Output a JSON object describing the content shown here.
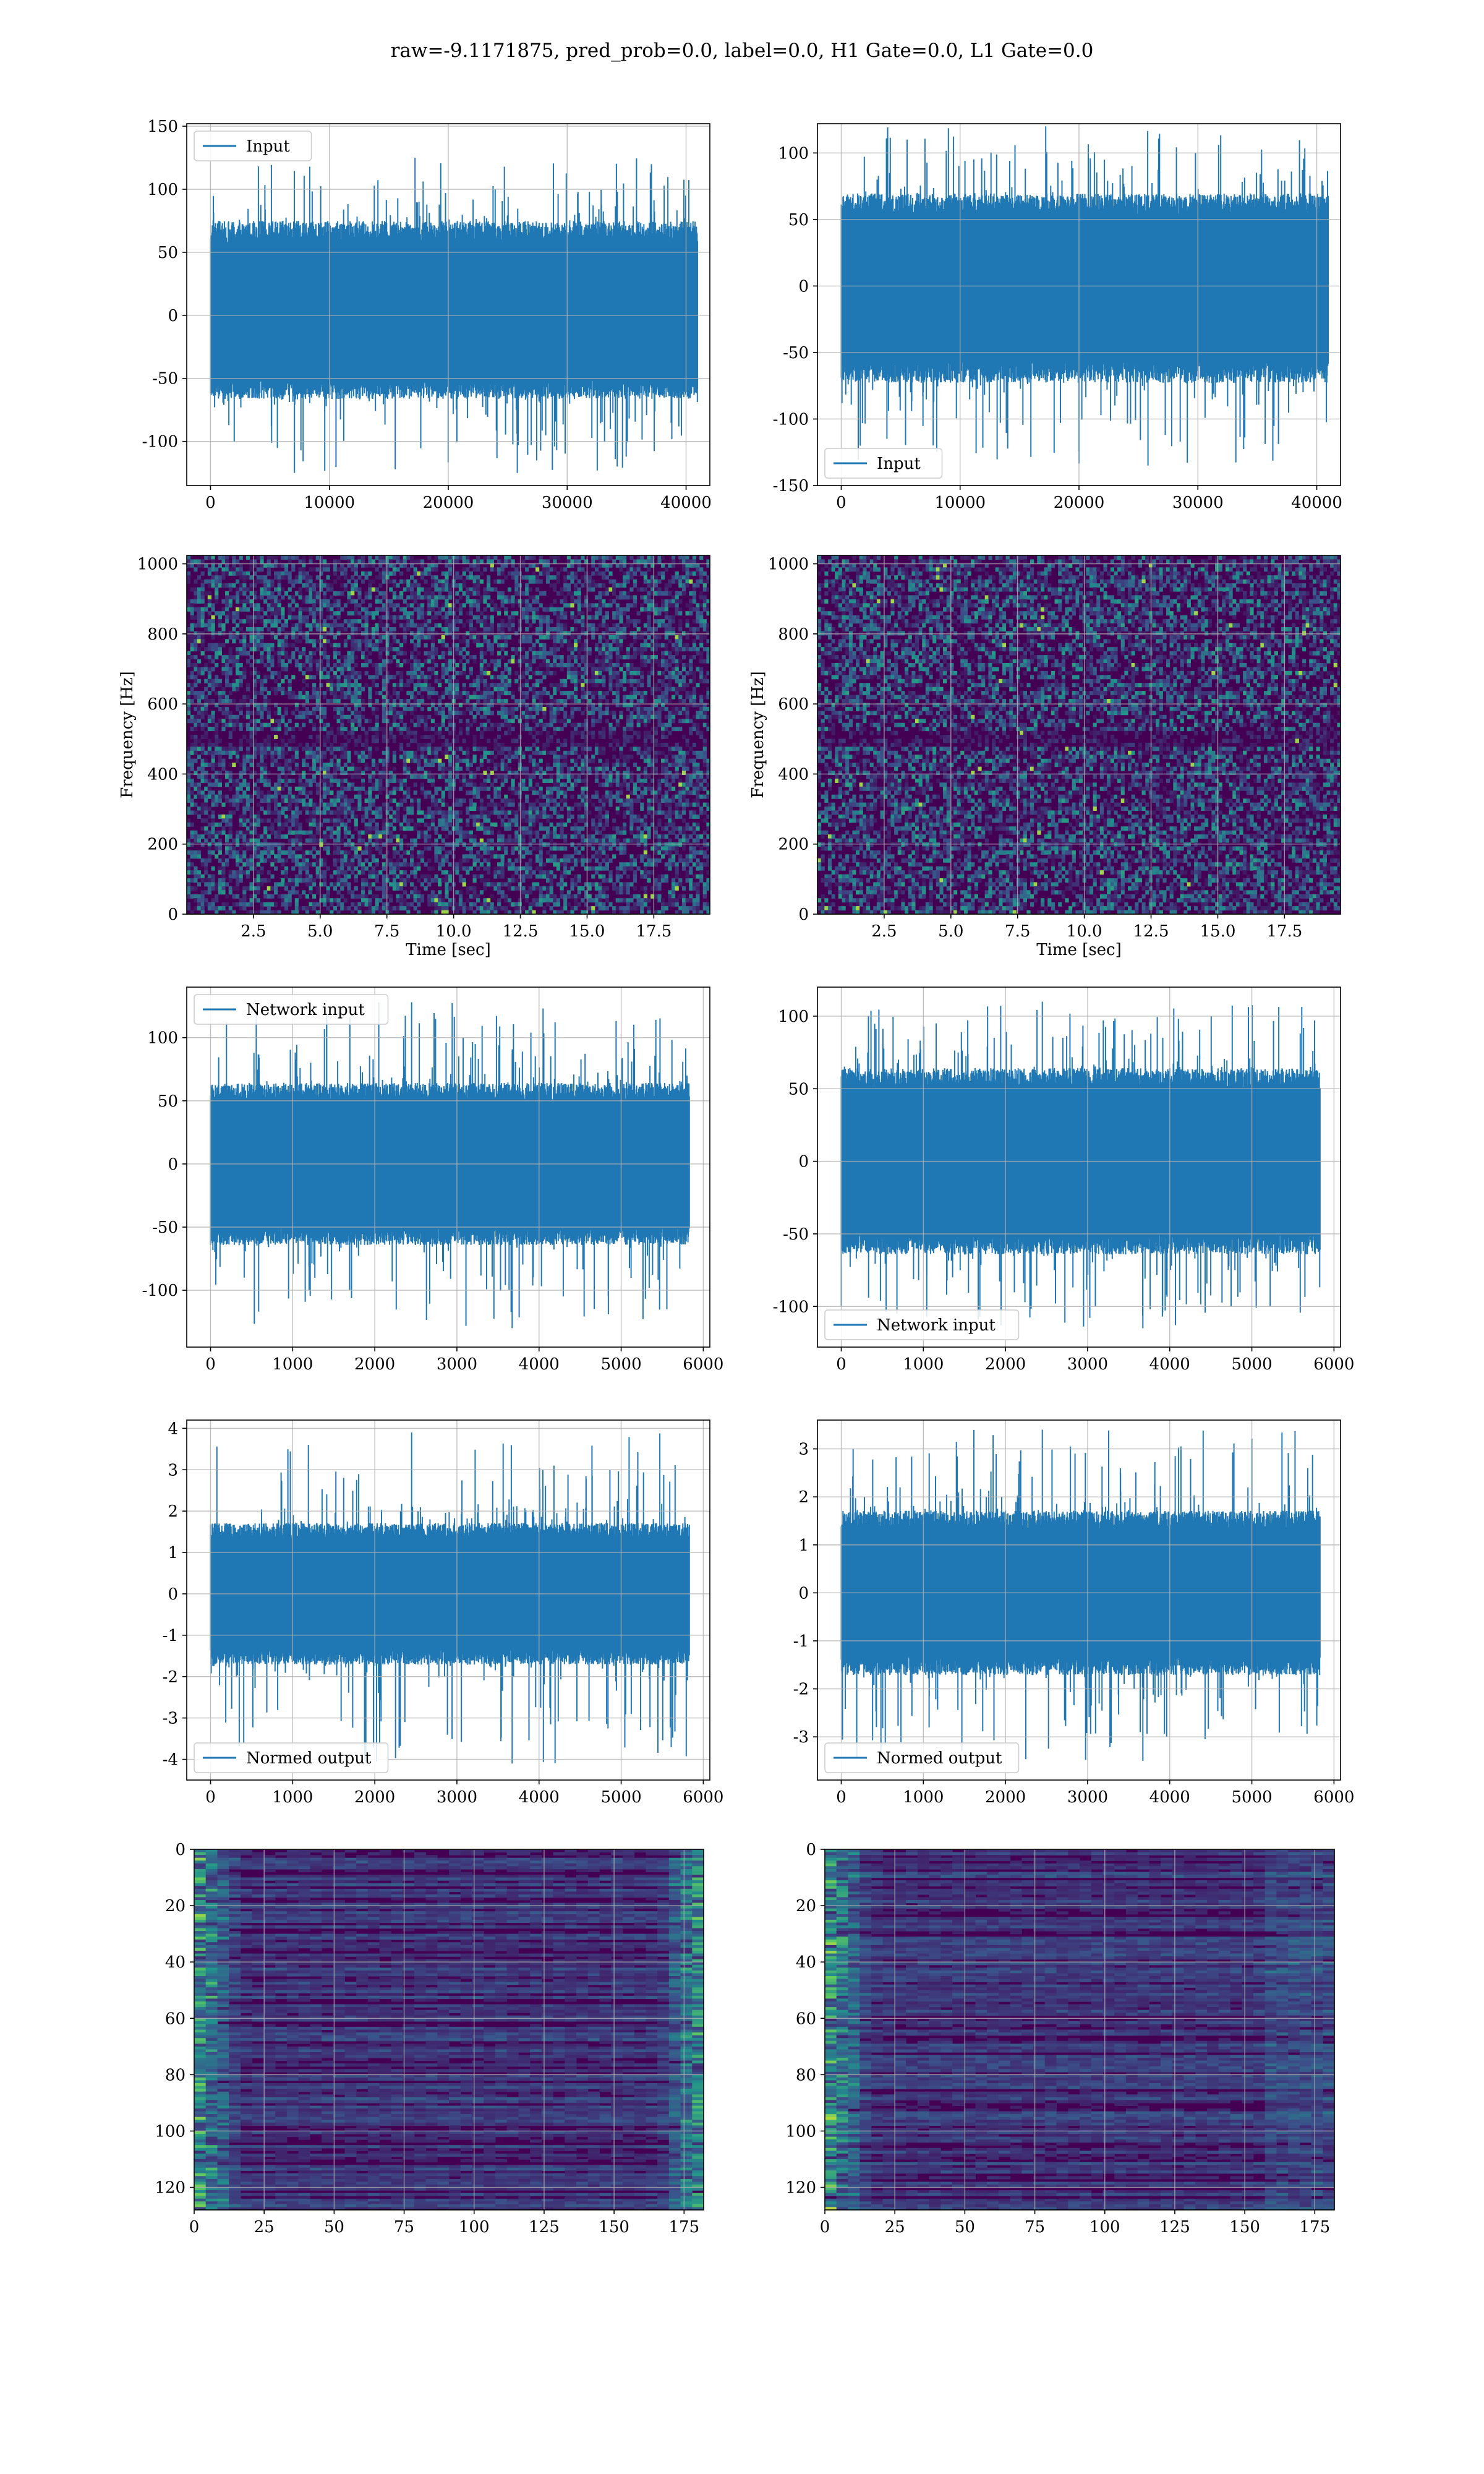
{
  "figure": {
    "title": "raw=-9.1171875, pred_prob=0.0, label=0.0, H1 Gate=0.0, L1 Gate=0.0"
  },
  "colors": {
    "series": "#1f77b4",
    "grid": "#b0b0b0",
    "viridis_low": "#440154",
    "viridis_high": "#fde725"
  },
  "chart_data": [
    {
      "id": "input-h1",
      "type": "line",
      "legend": {
        "label": "Input",
        "loc": "upper-left"
      },
      "xlim": [
        -2000,
        42000
      ],
      "ylim": [
        -135,
        152
      ],
      "xticks": [
        0,
        10000,
        20000,
        30000,
        40000
      ],
      "yticks": [
        -100,
        -50,
        0,
        50,
        100,
        150
      ],
      "xlabel": "",
      "ylabel": "",
      "x_range": [
        0,
        40960
      ],
      "n_samples": 40960,
      "envelope": {
        "core": [
          -62,
          70
        ],
        "peak_max": 125,
        "peak_min": -125
      },
      "grid": true
    },
    {
      "id": "input-l1",
      "type": "line",
      "legend": {
        "label": "Input",
        "loc": "lower-left"
      },
      "xlim": [
        -2000,
        42000
      ],
      "ylim": [
        -150,
        122
      ],
      "xticks": [
        0,
        10000,
        20000,
        30000,
        40000
      ],
      "yticks": [
        -150,
        -100,
        -50,
        0,
        50,
        100
      ],
      "xlabel": "",
      "ylabel": "",
      "x_range": [
        0,
        40960
      ],
      "n_samples": 40960,
      "envelope": {
        "core": [
          -68,
          65
        ],
        "peak_max": 120,
        "peak_min": -135
      },
      "grid": true
    },
    {
      "id": "spectrogram-h1",
      "type": "heatmap",
      "xlim": [
        0,
        19.6
      ],
      "ylim": [
        0,
        1024
      ],
      "xticks": [
        2.5,
        5.0,
        7.5,
        10.0,
        12.5,
        15.0,
        17.5
      ],
      "yticks": [
        0,
        200,
        400,
        600,
        800,
        1000
      ],
      "xlabel": "Time [sec]",
      "ylabel": "Frequency [Hz]",
      "colormap": "viridis",
      "grid": true
    },
    {
      "id": "spectrogram-l1",
      "type": "heatmap",
      "xlim": [
        0,
        19.6
      ],
      "ylim": [
        0,
        1024
      ],
      "xticks": [
        2.5,
        5.0,
        7.5,
        10.0,
        12.5,
        15.0,
        17.5
      ],
      "yticks": [
        0,
        200,
        400,
        600,
        800,
        1000
      ],
      "xlabel": "Time [sec]",
      "ylabel": "Frequency [Hz]",
      "colormap": "viridis",
      "grid": true
    },
    {
      "id": "network-input-h1",
      "type": "line",
      "legend": {
        "label": "Network input",
        "loc": "upper-left"
      },
      "xlim": [
        -290,
        6080
      ],
      "ylim": [
        -145,
        140
      ],
      "xticks": [
        0,
        1000,
        2000,
        3000,
        4000,
        5000,
        6000
      ],
      "yticks": [
        -100,
        -50,
        0,
        50,
        100
      ],
      "xlabel": "",
      "ylabel": "",
      "x_range": [
        0,
        5830
      ],
      "n_samples": 5830,
      "envelope": {
        "core": [
          -60,
          60
        ],
        "peak_max": 128,
        "peak_min": -130
      },
      "grid": true
    },
    {
      "id": "network-input-l1",
      "type": "line",
      "legend": {
        "label": "Network input",
        "loc": "lower-left"
      },
      "xlim": [
        -290,
        6080
      ],
      "ylim": [
        -128,
        120
      ],
      "xticks": [
        0,
        1000,
        2000,
        3000,
        4000,
        5000,
        6000
      ],
      "yticks": [
        -100,
        -50,
        0,
        50,
        100
      ],
      "xlabel": "",
      "ylabel": "",
      "x_range": [
        0,
        5830
      ],
      "n_samples": 5830,
      "envelope": {
        "core": [
          -60,
          60
        ],
        "peak_max": 110,
        "peak_min": -115
      },
      "grid": true
    },
    {
      "id": "normed-output-h1",
      "type": "line",
      "legend": {
        "label": "Normed output",
        "loc": "lower-left"
      },
      "xlim": [
        -290,
        6080
      ],
      "ylim": [
        -4.5,
        4.2
      ],
      "xticks": [
        0,
        1000,
        2000,
        3000,
        4000,
        5000,
        6000
      ],
      "yticks": [
        -4,
        -3,
        -2,
        -1,
        0,
        1,
        2,
        3,
        4
      ],
      "xlabel": "",
      "ylabel": "",
      "x_range": [
        0,
        5830
      ],
      "n_samples": 5830,
      "envelope": {
        "core": [
          -1.6,
          1.6
        ],
        "peak_max": 3.9,
        "peak_min": -4.1
      },
      "grid": true
    },
    {
      "id": "normed-output-l1",
      "type": "line",
      "legend": {
        "label": "Normed output",
        "loc": "lower-left"
      },
      "xlim": [
        -290,
        6080
      ],
      "ylim": [
        -3.9,
        3.6
      ],
      "xticks": [
        0,
        1000,
        2000,
        3000,
        4000,
        5000,
        6000
      ],
      "yticks": [
        -3,
        -2,
        -1,
        0,
        1,
        2,
        3
      ],
      "xlabel": "",
      "ylabel": "",
      "x_range": [
        0,
        5830
      ],
      "n_samples": 5830,
      "envelope": {
        "core": [
          -1.6,
          1.6
        ],
        "peak_max": 3.4,
        "peak_min": -3.5
      },
      "grid": true
    },
    {
      "id": "feature-map-h1",
      "type": "heatmap",
      "xlim": [
        0,
        182
      ],
      "ylim": [
        128,
        0
      ],
      "xticks": [
        0,
        25,
        50,
        75,
        100,
        125,
        150,
        175
      ],
      "yticks": [
        0,
        20,
        40,
        60,
        80,
        100,
        120
      ],
      "xlabel": "",
      "ylabel": "",
      "colormap": "viridis",
      "grid": true
    },
    {
      "id": "feature-map-l1",
      "type": "heatmap",
      "xlim": [
        0,
        182
      ],
      "ylim": [
        128,
        0
      ],
      "xticks": [
        0,
        25,
        50,
        75,
        100,
        125,
        150,
        175
      ],
      "yticks": [
        0,
        20,
        40,
        60,
        80,
        100,
        120
      ],
      "xlabel": "",
      "ylabel": "",
      "colormap": "viridis",
      "grid": true
    }
  ]
}
